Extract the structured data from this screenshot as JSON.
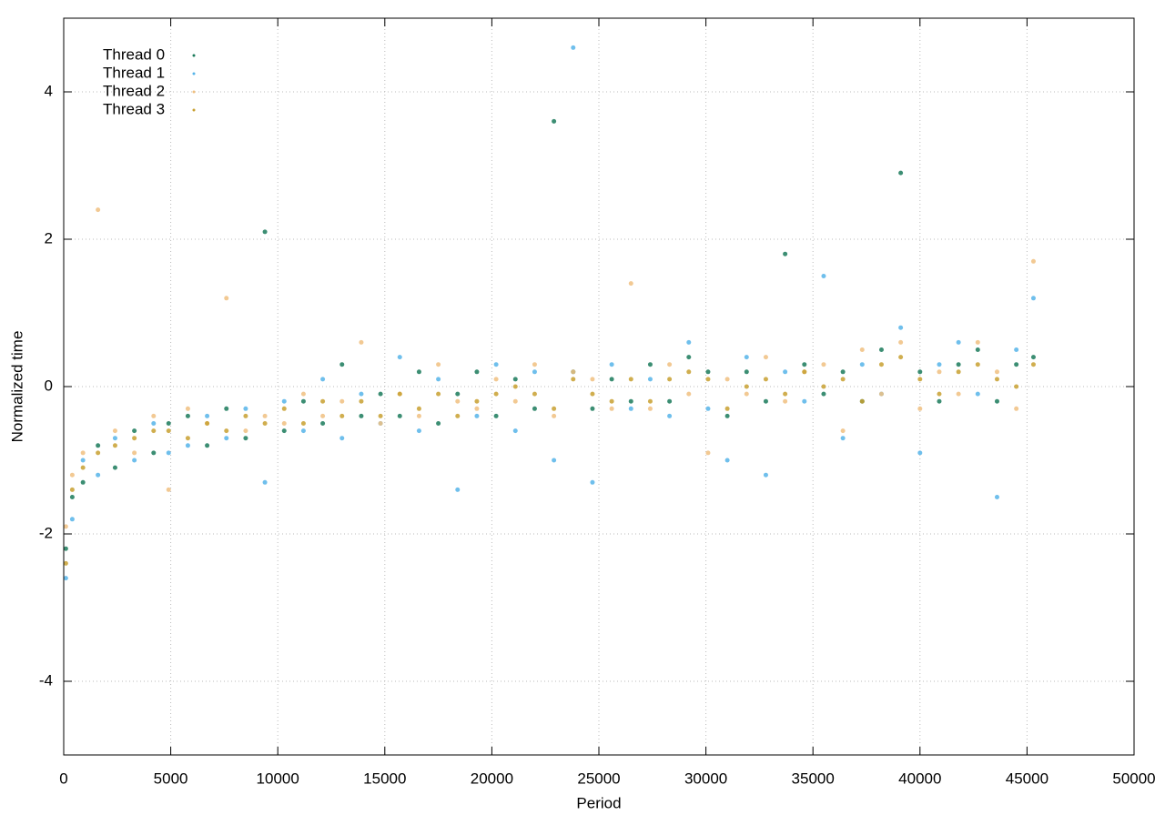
{
  "chart_data": {
    "type": "scatter",
    "x_label": "Period",
    "y_label": "Normalized time",
    "xlim": [
      0,
      50000
    ],
    "ylim": [
      -5,
      5
    ],
    "xticks": [
      0,
      5000,
      10000,
      15000,
      20000,
      25000,
      30000,
      35000,
      40000,
      45000,
      50000
    ],
    "yticks": [
      -4,
      -2,
      0,
      2,
      4
    ],
    "grid": true,
    "legend": "top-left",
    "x": [
      100,
      400,
      900,
      1600,
      2400,
      3300,
      4200,
      4900,
      5800,
      6700,
      7600,
      8500,
      9400,
      10300,
      11200,
      12100,
      13000,
      13900,
      14800,
      15700,
      16600,
      17500,
      18400,
      19300,
      20200,
      21100,
      22000,
      22900,
      23800,
      24700,
      25600,
      26500,
      27400,
      28300,
      29200,
      30100,
      31000,
      31900,
      32800,
      33700,
      34600,
      35500,
      36400,
      37300,
      38200,
      39100,
      40000,
      40900,
      41800,
      42700,
      43600,
      44500,
      45300
    ],
    "series": [
      {
        "name": "Thread 0",
        "color": "#1a7a5a",
        "values": [
          -2.2,
          -1.5,
          -1.3,
          -0.8,
          -1.1,
          -0.6,
          -0.9,
          -0.5,
          -0.4,
          -0.8,
          -0.3,
          -0.7,
          2.1,
          -0.6,
          -0.2,
          -0.5,
          0.3,
          -0.4,
          -0.1,
          -0.4,
          0.2,
          -0.5,
          -0.1,
          0.2,
          -0.4,
          0.1,
          -0.3,
          3.6,
          0.2,
          -0.3,
          0.1,
          -0.2,
          0.3,
          -0.2,
          0.4,
          0.2,
          -0.4,
          0.2,
          -0.2,
          1.8,
          0.3,
          -0.1,
          0.2,
          -0.2,
          0.5,
          2.9,
          0.2,
          -0.2,
          0.3,
          0.5,
          -0.2,
          0.3,
          0.4
        ]
      },
      {
        "name": "Thread 1",
        "color": "#56b4e9",
        "values": [
          -2.6,
          -1.8,
          -1.0,
          -1.2,
          -0.7,
          -1.0,
          -0.5,
          -0.9,
          -0.8,
          -0.4,
          -0.7,
          -0.3,
          -1.3,
          -0.2,
          -0.6,
          0.1,
          -0.7,
          -0.1,
          -0.5,
          0.4,
          -0.6,
          0.1,
          -1.4,
          -0.4,
          0.3,
          -0.6,
          0.2,
          -1.0,
          4.6,
          -1.3,
          0.3,
          -0.3,
          0.1,
          -0.4,
          0.6,
          -0.3,
          -1.0,
          0.4,
          -1.2,
          0.2,
          -0.2,
          1.5,
          -0.7,
          0.3,
          -0.1,
          0.8,
          -0.9,
          0.3,
          0.6,
          -0.1,
          -1.5,
          0.5,
          1.2
        ]
      },
      {
        "name": "Thread 2",
        "color": "#f0c080",
        "values": [
          -1.9,
          -1.2,
          -0.9,
          2.4,
          -0.6,
          -0.9,
          -0.4,
          -1.4,
          -0.3,
          -0.5,
          1.2,
          -0.6,
          -0.4,
          -0.5,
          -0.1,
          -0.4,
          -0.2,
          0.6,
          -0.5,
          -0.1,
          -0.4,
          0.3,
          -0.2,
          -0.3,
          0.1,
          -0.2,
          0.3,
          -0.4,
          0.2,
          0.1,
          -0.3,
          1.4,
          -0.3,
          0.3,
          -0.1,
          -0.9,
          0.1,
          -0.1,
          0.4,
          -0.2,
          0.2,
          0.3,
          -0.6,
          0.5,
          -0.1,
          0.6,
          -0.3,
          0.2,
          -0.1,
          0.6,
          0.2,
          -0.3,
          1.7
        ]
      },
      {
        "name": "Thread 3",
        "color": "#c8a030",
        "values": [
          -2.4,
          -1.4,
          -1.1,
          -0.9,
          -0.8,
          -0.7,
          -0.6,
          -0.6,
          -0.7,
          -0.5,
          -0.6,
          -0.4,
          -0.5,
          -0.3,
          -0.5,
          -0.2,
          -0.4,
          -0.2,
          -0.4,
          -0.1,
          -0.3,
          -0.1,
          -0.4,
          -0.2,
          -0.1,
          0,
          -0.1,
          -0.3,
          0.1,
          -0.1,
          -0.2,
          0.1,
          -0.2,
          0.1,
          0.2,
          0.1,
          -0.3,
          0,
          0.1,
          -0.1,
          0.2,
          0,
          0.1,
          -0.2,
          0.3,
          0.4,
          0.1,
          -0.1,
          0.2,
          0.3,
          0.1,
          0,
          0.3
        ]
      }
    ]
  }
}
